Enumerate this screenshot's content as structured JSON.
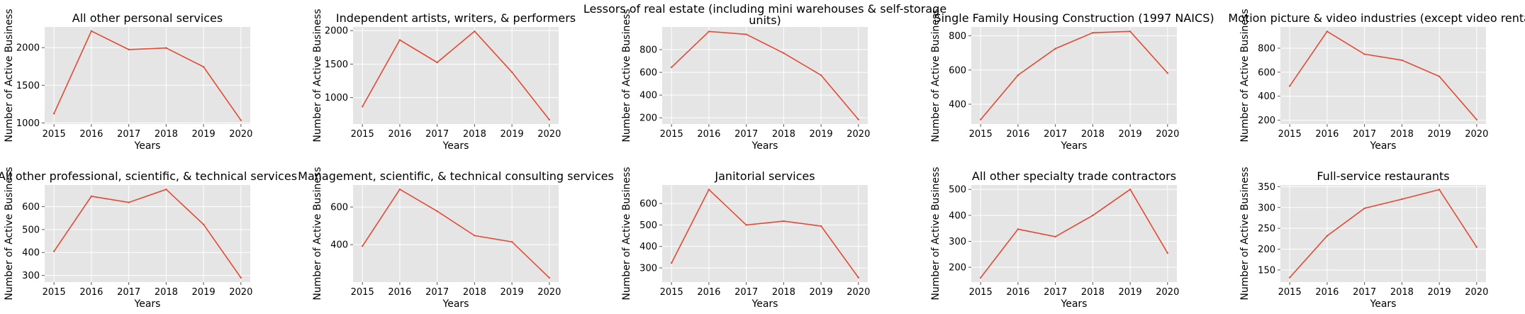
{
  "chart_data": [
    {
      "type": "line",
      "title": "All other personal services",
      "xlabel": "Years",
      "ylabel": "Number of Active Business",
      "x": [
        2015,
        2016,
        2017,
        2018,
        2019,
        2020
      ],
      "values": [
        1125,
        2220,
        1975,
        1995,
        1745,
        1035
      ],
      "ylim": [
        985,
        2275
      ],
      "yticks": [
        1000,
        1500,
        2000
      ]
    },
    {
      "type": "line",
      "title": "Independent artists, writers, & performers",
      "xlabel": "Years",
      "ylabel": "Number of Active Business",
      "x": [
        2015,
        2016,
        2017,
        2018,
        2019,
        2020
      ],
      "values": [
        865,
        1860,
        1525,
        1990,
        1380,
        670
      ],
      "ylim": [
        605,
        2055
      ],
      "yticks": [
        1000,
        1500,
        2000
      ]
    },
    {
      "type": "line",
      "title": "Lessors of real estate (including mini warehouses & self-storage units)",
      "xlabel": "Years",
      "ylabel": "Number of Active Business",
      "x": [
        2015,
        2016,
        2017,
        2018,
        2019,
        2020
      ],
      "values": [
        645,
        960,
        935,
        770,
        575,
        185
      ],
      "ylim": [
        145,
        1000
      ],
      "yticks": [
        200,
        400,
        600,
        800
      ]
    },
    {
      "type": "line",
      "title": "Single Family Housing Construction (1997 NAICS)",
      "xlabel": "Years",
      "ylabel": "Number of Active Business",
      "x": [
        2015,
        2016,
        2017,
        2018,
        2019,
        2020
      ],
      "values": [
        310,
        570,
        725,
        818,
        826,
        582
      ],
      "ylim": [
        284,
        852
      ],
      "yticks": [
        400,
        600,
        800
      ]
    },
    {
      "type": "line",
      "title": "Motion picture & video industries (except video rental)",
      "xlabel": "Years",
      "ylabel": "Number of Active Business",
      "x": [
        2015,
        2016,
        2017,
        2018,
        2019,
        2020
      ],
      "values": [
        485,
        940,
        750,
        700,
        565,
        205
      ],
      "ylim": [
        168,
        977
      ],
      "yticks": [
        200,
        400,
        600,
        800
      ]
    },
    {
      "type": "line",
      "title": "All other professional, scientific, & technical services",
      "xlabel": "Years",
      "ylabel": "Number of Active Business",
      "x": [
        2015,
        2016,
        2017,
        2018,
        2019,
        2020
      ],
      "values": [
        405,
        645,
        618,
        675,
        522,
        290
      ],
      "ylim": [
        271,
        694
      ],
      "yticks": [
        300,
        400,
        500,
        600
      ]
    },
    {
      "type": "line",
      "title": "Management, scientific, & technical consulting services",
      "xlabel": "Years",
      "ylabel": "Number of Active Business",
      "x": [
        2015,
        2016,
        2017,
        2018,
        2019,
        2020
      ],
      "values": [
        392,
        694,
        578,
        448,
        415,
        224
      ],
      "ylim": [
        201,
        717
      ],
      "yticks": [
        400,
        600
      ]
    },
    {
      "type": "line",
      "title": "Janitorial services",
      "xlabel": "Years",
      "ylabel": "Number of Active Business",
      "x": [
        2015,
        2016,
        2017,
        2018,
        2019,
        2020
      ],
      "values": [
        323,
        665,
        500,
        518,
        495,
        255
      ],
      "ylim": [
        234,
        686
      ],
      "yticks": [
        300,
        400,
        500,
        600
      ]
    },
    {
      "type": "line",
      "title": "All other specialty trade contractors",
      "xlabel": "Years",
      "ylabel": "Number of Active Business",
      "x": [
        2015,
        2016,
        2017,
        2018,
        2019,
        2020
      ],
      "values": [
        160,
        347,
        318,
        400,
        500,
        255
      ],
      "ylim": [
        143,
        517
      ],
      "yticks": [
        200,
        300,
        400,
        500
      ]
    },
    {
      "type": "line",
      "title": "Full-service restaurants",
      "xlabel": "Years",
      "ylabel": "Number of Active Business",
      "x": [
        2015,
        2016,
        2017,
        2018,
        2019,
        2020
      ],
      "values": [
        132,
        232,
        298,
        320,
        343,
        205
      ],
      "ylim": [
        121,
        354
      ],
      "yticks": [
        150,
        200,
        250,
        300,
        350
      ]
    }
  ]
}
